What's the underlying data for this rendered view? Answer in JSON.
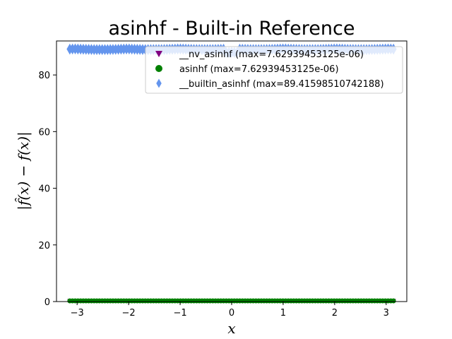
{
  "chart_data": {
    "type": "scatter",
    "title": "asinhf - Built-in Reference",
    "xlabel": "x",
    "ylabel": "|f̂(x) − f(x)|",
    "xlim": [
      -3.4,
      3.4
    ],
    "ylim": [
      0,
      92
    ],
    "xticks": [
      -3,
      -2,
      -1,
      0,
      1,
      2,
      3
    ],
    "xtick_labels": [
      "−3",
      "−2",
      "−1",
      "0",
      "1",
      "2",
      "3"
    ],
    "yticks": [
      0,
      20,
      40,
      60,
      80
    ],
    "ytick_labels": [
      "0",
      "20",
      "40",
      "60",
      "80"
    ],
    "x_range": [
      -3.1416,
      3.1416
    ],
    "legend_position": "upper right",
    "grid": false,
    "series": [
      {
        "name": "__nv_asinhf (max=7.62939453125e-06)",
        "marker": "triangle-down",
        "color": "#800080",
        "max": 7.62939453125e-06,
        "level": 0
      },
      {
        "name": "asinhf (max=7.62939453125e-06)",
        "marker": "circle",
        "color": "#008000",
        "max": 7.62939453125e-06,
        "level": 0
      },
      {
        "name": "__builtin_asinhf (max=89.41598510742188)",
        "marker": "diamond",
        "color": "#6495ED",
        "max": 89.41598510742188,
        "level": 89.2
      }
    ]
  }
}
